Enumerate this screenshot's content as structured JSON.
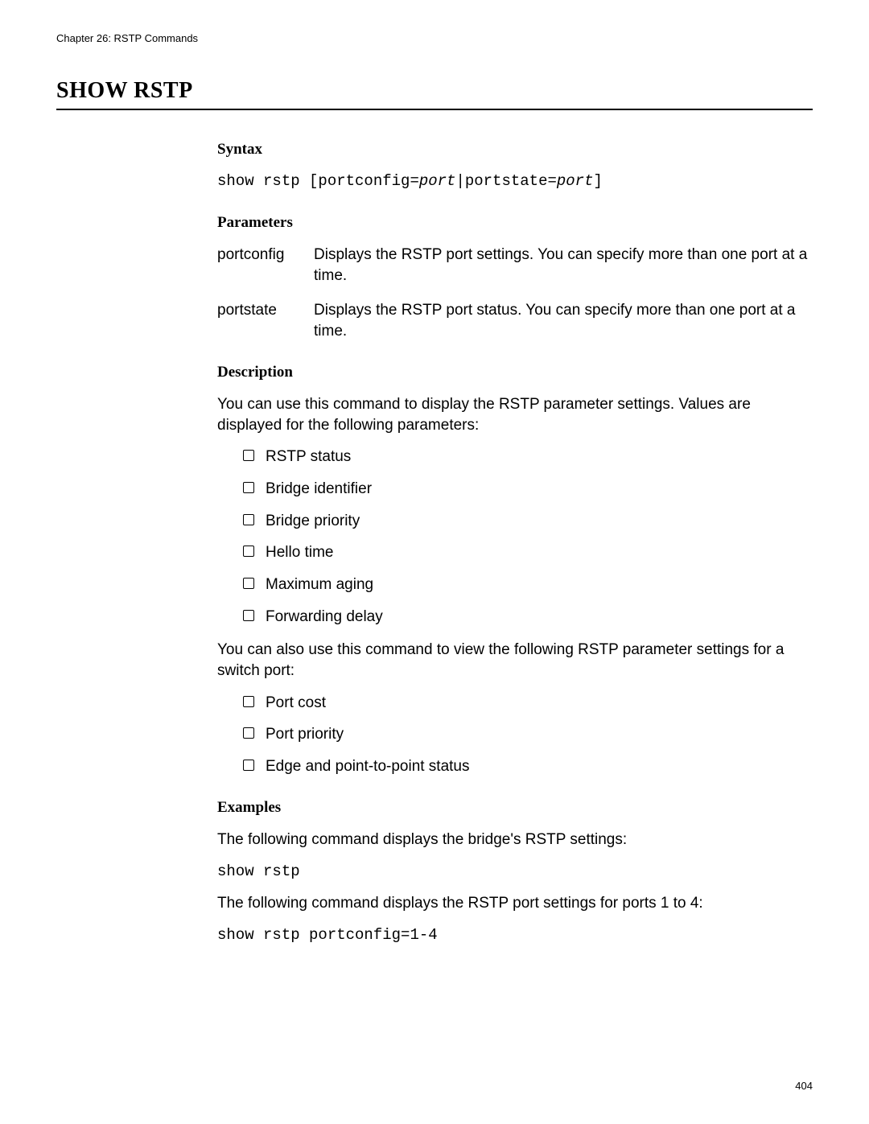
{
  "chapter_header": "Chapter 26: RSTP Commands",
  "title": "SHOW RSTP",
  "syntax": {
    "heading": "Syntax",
    "line_pre1": "show rstp [portconfig=",
    "line_ital1": "port",
    "line_mid": "|portstate=",
    "line_ital2": "port",
    "line_post": "]"
  },
  "parameters": {
    "heading": "Parameters",
    "rows": [
      {
        "name": "portconfig",
        "desc": "Displays the RSTP port settings. You can specify more than one port at a time."
      },
      {
        "name": "portstate",
        "desc": "Displays the RSTP port status. You can specify more than one port at a time."
      }
    ]
  },
  "description": {
    "heading": "Description",
    "para1": "You can use this command to display the RSTP parameter settings. Values are displayed for the following parameters:",
    "list1": [
      "RSTP status",
      "Bridge identifier",
      "Bridge priority",
      "Hello time",
      "Maximum aging",
      "Forwarding delay"
    ],
    "para2": "You can also use this command to view the following RSTP parameter settings for a switch port:",
    "list2": [
      "Port cost",
      "Port priority",
      "Edge and point-to-point status"
    ]
  },
  "examples": {
    "heading": "Examples",
    "para1": "The following command displays the bridge's RSTP settings:",
    "code1": "show rstp",
    "para2": "The following command displays the RSTP port settings for ports 1 to 4:",
    "code2": "show rstp portconfig=1-4"
  },
  "page_number": "404"
}
